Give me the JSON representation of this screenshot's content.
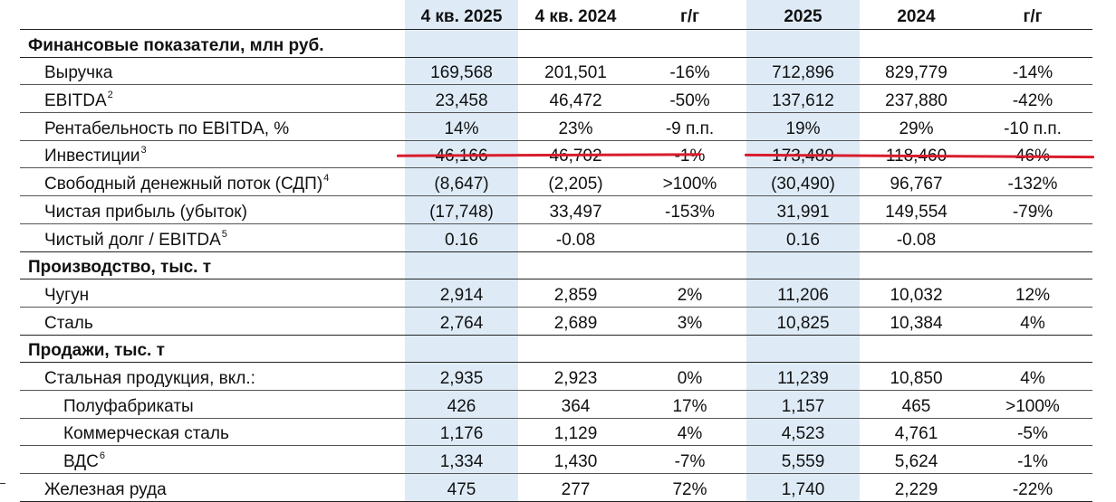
{
  "headers": [
    "",
    "4 кв. 2025",
    "4 кв. 2024",
    "г/г",
    "2025",
    "2024",
    "г/г"
  ],
  "sections": [
    {
      "title": "Финансовые показатели, млн руб.",
      "rows": [
        {
          "label": "Выручка",
          "sup": "",
          "values": [
            "169,568",
            "201,501",
            "-16%",
            "712,896",
            "829,779",
            "-14%"
          ]
        },
        {
          "label": "EBITDA",
          "sup": "2",
          "values": [
            "23,458",
            "46,472",
            "-50%",
            "137,612",
            "237,880",
            "-42%"
          ]
        },
        {
          "label": "Рентабельность по EBITDA, %",
          "sup": "",
          "values": [
            "14%",
            "23%",
            "-9 п.п.",
            "19%",
            "29%",
            "-10 п.п."
          ]
        },
        {
          "label": "Инвестиции",
          "sup": "3",
          "values": [
            "46,166",
            "46,702",
            "-1%",
            "173,489",
            "118,460",
            "46%"
          ]
        },
        {
          "label": "Свободный денежный поток (СДП)",
          "sup": "4",
          "values": [
            "(8,647)",
            "(2,205)",
            ">100%",
            "(30,490)",
            "96,767",
            "-132%"
          ]
        },
        {
          "label": "Чистая прибыль (убыток)",
          "sup": "",
          "values": [
            "(17,748)",
            "33,497",
            "-153%",
            "31,991",
            "149,554",
            "-79%"
          ]
        },
        {
          "label": "Чистый долг / EBITDA",
          "sup": "5",
          "values": [
            "0.16",
            "-0.08",
            "",
            "0.16",
            "-0.08",
            ""
          ]
        }
      ]
    },
    {
      "title": "Производство, тыс. т",
      "rows": [
        {
          "label": "Чугун",
          "sup": "",
          "values": [
            "2,914",
            "2,859",
            "2%",
            "11,206",
            "10,032",
            "12%"
          ]
        },
        {
          "label": "Сталь",
          "sup": "",
          "values": [
            "2,764",
            "2,689",
            "3%",
            "10,825",
            "10,384",
            "4%"
          ]
        }
      ]
    },
    {
      "title": "Продажи, тыс. т",
      "rows": [
        {
          "label": "Стальная продукция, вкл.:",
          "sup": "",
          "values": [
            "2,935",
            "2,923",
            "0%",
            "11,239",
            "10,850",
            "4%"
          ]
        },
        {
          "label": "Полуфабрикаты",
          "sup": "",
          "values": [
            "426",
            "364",
            "17%",
            "1,157",
            "465",
            ">100%"
          ]
        },
        {
          "label": "Коммерческая сталь",
          "sup": "",
          "values": [
            "1,176",
            "1,129",
            "4%",
            "4,523",
            "4,761",
            "-5%"
          ]
        },
        {
          "label": "ВДС",
          "sup": "6",
          "values": [
            "1,334",
            "1,430",
            "-7%",
            "5,559",
            "5,624",
            "-1%"
          ]
        },
        {
          "label": "Железная руда",
          "sup": "",
          "values": [
            "475",
            "277",
            "72%",
            "1,740",
            "2,229",
            "-22%"
          ]
        }
      ]
    }
  ],
  "colors": {
    "highlight_column": "#deebf7",
    "underline_mark": "#d91c2c"
  }
}
